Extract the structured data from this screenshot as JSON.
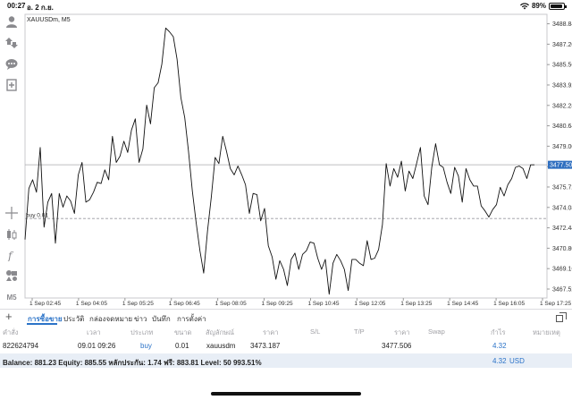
{
  "status_bar": {
    "time": "00:27",
    "date": "อ. 2 ก.ย.",
    "battery": "89%"
  },
  "toolbar": {
    "icons": [
      "account-icon",
      "trade-icon",
      "chat-icon",
      "new-document-icon",
      "crosshair-icon",
      "candles-icon",
      "indicators-icon",
      "objects-icon",
      "timeframe-label"
    ],
    "timeframe": "M5"
  },
  "chart": {
    "symbol_label": "XAUUSDm, M5",
    "bid_price": "3477.506",
    "order_label": "buy 0.01"
  },
  "chart_data": {
    "type": "line",
    "symbol": "XAUUSDm",
    "timeframe": "M5",
    "y_ticks": [
      "3488.840",
      "3487.200",
      "3485.560",
      "3483.920",
      "3482.280",
      "3480.640",
      "3479.000",
      "3477.360",
      "3475.720",
      "3474.080",
      "3472.440",
      "3470.800",
      "3469.160",
      "3467.520"
    ],
    "x_ticks": [
      "1 Sep 02:45",
      "1 Sep 04:05",
      "1 Sep 05:25",
      "1 Sep 06:45",
      "1 Sep 08:05",
      "1 Sep 09:25",
      "1 Sep 10:45",
      "1 Sep 12:05",
      "1 Sep 13:25",
      "1 Sep 14:45",
      "1 Sep 16:05",
      "1 Sep 17:25"
    ],
    "ylim": [
      3466.8,
      3489.6
    ],
    "bid": 3477.506,
    "order_price": 3473.187,
    "values": [
      3471.5,
      3475.6,
      3476.3,
      3475.3,
      3478.9,
      3472.5,
      3474.5,
      3475.2,
      3471.2,
      3475.2,
      3474.1,
      3475.0,
      3474.6,
      3473.6,
      3476.7,
      3477.7,
      3474.5,
      3474.7,
      3475.3,
      3476.1,
      3476.0,
      3477.1,
      3476.3,
      3479.8,
      3477.7,
      3478.2,
      3479.4,
      3478.5,
      3480.3,
      3481.2,
      3477.7,
      3478.8,
      3482.3,
      3480.8,
      3483.7,
      3484.1,
      3485.6,
      3488.5,
      3488.2,
      3487.8,
      3486.0,
      3482.9,
      3481.3,
      3478.6,
      3475.4,
      3472.9,
      3470.6,
      3468.8,
      3472.2,
      3474.9,
      3478.1,
      3477.6,
      3479.8,
      3478.6,
      3477.2,
      3476.7,
      3477.4,
      3476.7,
      3475.9,
      3473.6,
      3475.2,
      3475.1,
      3473.0,
      3474.0,
      3471.0,
      3470.1,
      3468.3,
      3469.8,
      3469.1,
      3467.8,
      3469.9,
      3470.4,
      3469.1,
      3470.3,
      3470.6,
      3471.3,
      3471.2,
      3470.0,
      3469.1,
      3469.9,
      3467.1,
      3469.6,
      3470.3,
      3469.8,
      3469.1,
      3467.4,
      3469.9,
      3469.9,
      3469.6,
      3469.4,
      3471.4,
      3469.9,
      3470.0,
      3470.7,
      3472.7,
      3477.6,
      3475.8,
      3477.2,
      3476.5,
      3477.8,
      3475.4,
      3477.0,
      3476.4,
      3477.6,
      3478.9,
      3475.0,
      3474.3,
      3477.3,
      3479.2,
      3477.5,
      3477.3,
      3476.1,
      3475.2,
      3477.3,
      3476.6,
      3474.5,
      3477.2,
      3476.3,
      3475.8,
      3475.8,
      3474.2,
      3473.8,
      3473.3,
      3473.9,
      3474.3,
      3475.7,
      3475.0,
      3475.9,
      3476.4,
      3477.3,
      3477.4,
      3477.2,
      3476.4,
      3477.5,
      3477.5
    ]
  },
  "tabs": [
    {
      "label": "การซื้อขาย",
      "active": true
    },
    {
      "label": "ประวัติ",
      "active": false
    },
    {
      "label": "กล่องจดหมาย",
      "active": false
    },
    {
      "label": "ข่าว",
      "active": false
    },
    {
      "label": "บันทึก",
      "active": false
    },
    {
      "label": "การตั้งค่า",
      "active": false
    }
  ],
  "columns": {
    "ticket": "คำสั่ง",
    "time": "เวลา",
    "type": "ประเภท",
    "volume": "ขนาด",
    "symbol": "สัญลักษณ์",
    "price": "ราคา",
    "sl": "S/L",
    "tp": "T/P",
    "current_price": "ราคา",
    "swap": "Swap",
    "profit": "กำไร",
    "comment": "หมายเหตุ"
  },
  "order": {
    "ticket": "822624794",
    "time": "09.01 09:26",
    "type": "buy",
    "volume": "0.01",
    "symbol": "xauusdm",
    "price": "3473.187",
    "current_price": "3477.506",
    "profit": "4.32"
  },
  "balance": {
    "text": "Balance: 881.23 Equity: 885.55 หลักประกัน: 1.74 ฟรี: 883.81 Level: 50 993.51%",
    "profit": "4.32",
    "currency": "USD"
  },
  "colors": {
    "accent": "#2b73c8",
    "line": "#111111",
    "price_line": "#a8a8ad"
  }
}
